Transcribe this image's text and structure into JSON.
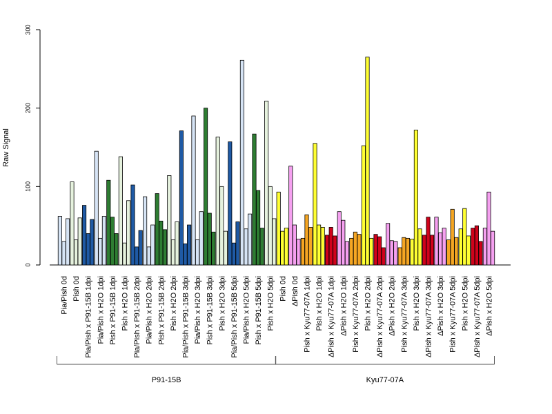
{
  "chart_data": {
    "type": "bar",
    "ylabel": "Raw Signal",
    "ylim": [
      0,
      300
    ],
    "yticks": [
      0,
      100,
      200,
      300
    ],
    "grid": false,
    "legend": "none",
    "categories": [
      "Pia/Pish 0d",
      "Pish 0d",
      "Pia/Pish x P91-15B 1dpi",
      "Pia/Pish x H2O 1dpi",
      "Pish x P91-15B 1dpi",
      "Pish x H2O 1dpi",
      "Pia/Pish x P91-15B 2dpi",
      "Pia/Pish x H2O 2dpi",
      "Pish x P91-15B 2dpi",
      "Pish x H2O 2dpi",
      "Pia/Pish x P91-15B 3dpi",
      "Pia/Pish x H2O 3dpi",
      "Pish x P91-15B 3dpi",
      "Pish x H2O 3dpi",
      "Pia/Pish x P91-15B 5dpi",
      "Pia/Pish x H2O 5dpi",
      "Pish x P91-15B 5dpi",
      "Pish x H2O 5dpi",
      "Pish 0d",
      "ΔPish 0d",
      "Pish x Kyu77-07A 1dpi",
      "Pish x H2O 1dpi",
      "ΔPish x Kyu77-07A 1dpi",
      "ΔPish x H2O 1dpi",
      "Pish x Kyu77-07A 2dpi",
      "Pish x H2O 2dpi",
      "ΔPish x Kyu77-07A 2dpi",
      "ΔPish x H2O 2dpi",
      "Pish x Kyu77-07A 3dpi",
      "Pish x H2O 3dpi",
      "ΔPish x Kyu77-07A 3dpi",
      "ΔPish x H2O 3dpi",
      "Pish x Kyu77-07A 5dpi",
      "Pish x H2O 5dpi",
      "ΔPish x Kyu77-07A 5dpi",
      "ΔPish x H2O 5dpi"
    ],
    "colors": [
      "#d6e4f5",
      "#e6f2de",
      "#1f5aa5",
      "#d6e4f5",
      "#2e7d32",
      "#e6f2de",
      "#1f5aa5",
      "#d6e4f5",
      "#2e7d32",
      "#e6f2de",
      "#1f5aa5",
      "#d6e4f5",
      "#2e7d32",
      "#e6f2de",
      "#1f5aa5",
      "#d6e4f5",
      "#2e7d32",
      "#e6f2de",
      "#ffff33",
      "#f5a0f0",
      "#f5a623",
      "#ffff33",
      "#d0021b",
      "#f5a0f0",
      "#f5a623",
      "#ffff33",
      "#d0021b",
      "#f5a0f0",
      "#f5a623",
      "#ffff33",
      "#d0021b",
      "#f5a0f0",
      "#f5a623",
      "#ffff33",
      "#d0021b",
      "#f5a0f0"
    ],
    "values": [
      [
        62,
        30,
        59
      ],
      [
        106,
        32,
        60
      ],
      [
        76,
        40,
        58
      ],
      [
        145,
        34,
        62
      ],
      [
        108,
        61,
        40
      ],
      [
        138,
        28,
        82
      ],
      [
        102,
        23,
        44
      ],
      [
        87,
        23,
        51
      ],
      [
        91,
        56,
        45
      ],
      [
        114,
        32,
        55
      ],
      [
        171,
        27,
        51
      ],
      [
        190,
        32,
        68
      ],
      [
        200,
        66,
        42
      ],
      [
        163,
        100,
        43
      ],
      [
        157,
        28,
        55
      ],
      [
        261,
        46,
        65
      ],
      [
        167,
        95,
        47
      ],
      [
        209,
        100,
        59
      ],
      [
        93,
        43,
        47
      ],
      [
        126,
        51,
        33
      ],
      [
        34,
        64,
        48
      ],
      [
        155,
        51,
        48
      ],
      [
        38,
        48,
        37
      ],
      [
        68,
        57,
        30
      ],
      [
        34,
        42,
        39
      ],
      [
        152,
        265,
        34
      ],
      [
        39,
        36,
        22
      ],
      [
        53,
        31,
        30
      ],
      [
        22,
        35,
        34
      ],
      [
        33,
        172,
        46
      ],
      [
        38,
        61,
        38
      ],
      [
        61,
        41,
        47
      ],
      [
        32,
        71,
        35
      ],
      [
        46,
        72,
        37
      ],
      [
        47,
        50,
        30
      ],
      [
        47,
        93,
        43
      ]
    ],
    "groups": [
      {
        "label": "P91-15B",
        "start": 0,
        "end": 17
      },
      {
        "label": "Kyu77-07A",
        "start": 18,
        "end": 35
      }
    ]
  }
}
